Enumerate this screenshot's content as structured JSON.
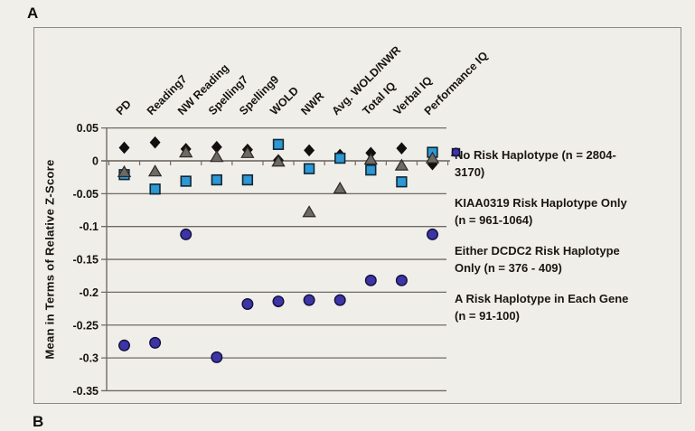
{
  "panel": {
    "label_a": "A",
    "label_b": "B"
  },
  "colors": {
    "background": "#f1efea",
    "frame_border": "#8d8984",
    "grid": "#6f6a64",
    "text": "#161310",
    "diamond": "#12100e",
    "square_fill": "#2e97d4",
    "square_stroke": "#0f2733",
    "triangle_fill": "#6d6963",
    "triangle_stroke": "#2b2927",
    "circle_fill": "#3d34a6",
    "circle_stroke": "#13103a"
  },
  "chart_data": {
    "type": "scatter",
    "title": "",
    "xlabel": "",
    "ylabel": "Mean in Terms of Relative Z-Score",
    "ylim": [
      -0.35,
      0.05
    ],
    "ytick_labels": [
      "0.05",
      "0",
      "-0.05",
      "-0.1",
      "-0.15",
      "-0.2",
      "-0.25",
      "-0.3",
      "-0.35"
    ],
    "ytick_values": [
      0.05,
      0,
      -0.05,
      -0.1,
      -0.15,
      -0.2,
      -0.25,
      -0.3,
      -0.35
    ],
    "grid": true,
    "legend_position": "right",
    "xticklabel_rotation": 45,
    "categories": [
      "PD",
      "Reading7",
      "NW Reading",
      "Spelling7",
      "Spelling9",
      "WOLD",
      "NWR",
      "Avg. WOLD/NWR",
      "Total IQ",
      "Verbal IQ",
      "Performance IQ"
    ],
    "series": [
      {
        "name": "No Risk Haplotype (n = 2804-3170)",
        "legend_lines": "No Risk Haplotype (n = 2804-\n3170)",
        "marker": "diamond",
        "values": [
          0.02,
          0.028,
          0.018,
          0.021,
          0.017,
          0.001,
          0.016,
          0.009,
          0.012,
          0.019,
          -0.005
        ]
      },
      {
        "name": "KIAA0319 Risk Haplotype Only (n = 961-1064)",
        "legend_lines": "KIAA0319 Risk Haplotype Only\n(n = 961-1064)",
        "marker": "square",
        "values": [
          -0.021,
          -0.043,
          -0.031,
          -0.029,
          -0.029,
          0.025,
          -0.012,
          0.004,
          -0.014,
          -0.032,
          0.013
        ]
      },
      {
        "name": "Either DCDC2 Risk Haplotype Only (n = 376 - 409)",
        "legend_lines": "Either DCDC2 Risk Haplotype\nOnly (n = 376 - 409)",
        "marker": "triangle",
        "values": [
          -0.017,
          -0.016,
          0.013,
          0.006,
          0.012,
          -0.001,
          -0.078,
          -0.042,
          0.002,
          -0.007,
          0.004
        ]
      },
      {
        "name": "A Risk Haplotype in Each Gene (n = 91-100)",
        "legend_lines": "A Risk Haplotype in Each Gene\n(n = 91-100)",
        "marker": "circle",
        "values": [
          -0.281,
          -0.277,
          -0.112,
          -0.299,
          -0.218,
          -0.214,
          -0.212,
          -0.212,
          -0.182,
          -0.182,
          -0.112
        ]
      }
    ]
  }
}
